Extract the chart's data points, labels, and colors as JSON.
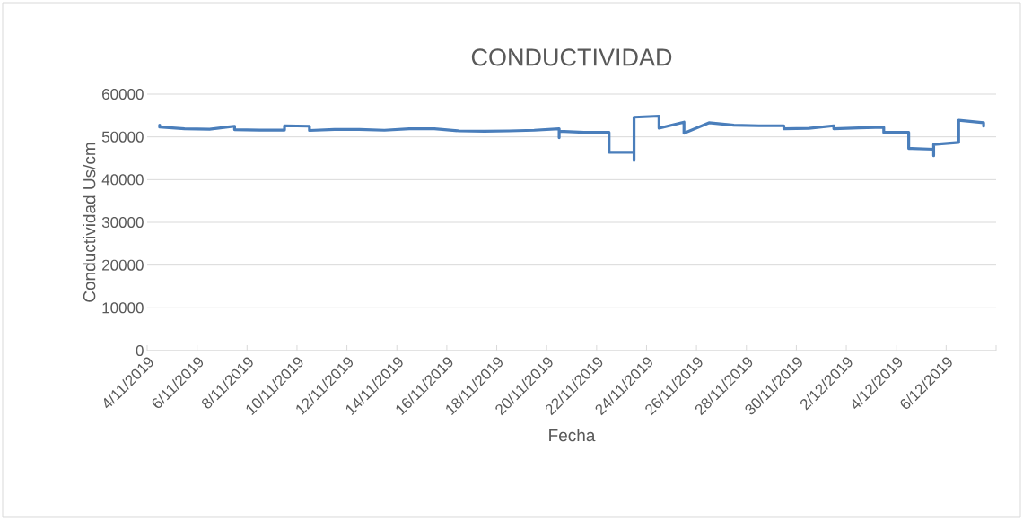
{
  "chart_data": {
    "type": "line",
    "title": "CONDUCTIVIDAD",
    "xlabel": "Fecha",
    "ylabel": "Conductividad Us/cm",
    "x": [
      "2019-11-04T12:00",
      "2019-11-04T12:00",
      "2019-11-05T12:00",
      "2019-11-06T12:00",
      "2019-11-07T12:00",
      "2019-11-07T12:00",
      "2019-11-08T12:00",
      "2019-11-09T12:00",
      "2019-11-09T12:00",
      "2019-11-10T12:00",
      "2019-11-10T12:00",
      "2019-11-11T12:00",
      "2019-11-12T12:00",
      "2019-11-13T12:00",
      "2019-11-14T12:00",
      "2019-11-15T12:00",
      "2019-11-16T12:00",
      "2019-11-17T12:00",
      "2019-11-18T12:00",
      "2019-11-19T12:00",
      "2019-11-20T12:00",
      "2019-11-20T12:00",
      "2019-11-20T12:00",
      "2019-11-21T12:00",
      "2019-11-22T12:00",
      "2019-11-22T12:00",
      "2019-11-23T12:00",
      "2019-11-23T12:00",
      "2019-11-23T12:00",
      "2019-11-24T12:00",
      "2019-11-24T12:00",
      "2019-11-25T12:00",
      "2019-11-25T12:00",
      "2019-11-26T12:00",
      "2019-11-27T12:00",
      "2019-11-28T12:00",
      "2019-11-29T12:00",
      "2019-11-29T12:00",
      "2019-11-30T12:00",
      "2019-12-01T12:00",
      "2019-12-01T12:00",
      "2019-12-02T12:00",
      "2019-12-03T12:00",
      "2019-12-03T12:00",
      "2019-12-04T12:00",
      "2019-12-04T12:00",
      "2019-12-05T12:00",
      "2019-12-05T12:00",
      "2019-12-05T12:00",
      "2019-12-06T12:00",
      "2019-12-06T12:00",
      "2019-12-07T12:00",
      "2019-12-07T12:00"
    ],
    "series": [
      {
        "color": "#4a7ebb",
        "values": [
          52750,
          52300,
          51900,
          51800,
          52500,
          51700,
          51600,
          51600,
          52600,
          52500,
          51500,
          51750,
          51750,
          51550,
          51900,
          51900,
          51400,
          51340,
          51400,
          51550,
          51900,
          49800,
          51300,
          51050,
          51050,
          46400,
          46400,
          44500,
          54600,
          54860,
          52040,
          53450,
          50850,
          53300,
          52750,
          52600,
          52600,
          51900,
          52000,
          52600,
          51900,
          52100,
          52250,
          51050,
          51050,
          47300,
          47100,
          45600,
          48240,
          48700,
          53900,
          53300,
          52500
        ]
      }
    ],
    "xlim": [
      "2019-11-04",
      "2019-12-08"
    ],
    "xticks": [
      {
        "value": "2019-11-04",
        "label": "4/11/2019"
      },
      {
        "value": "2019-11-06",
        "label": "6/11/2019"
      },
      {
        "value": "2019-11-08",
        "label": "8/11/2019"
      },
      {
        "value": "2019-11-10",
        "label": "10/11/2019"
      },
      {
        "value": "2019-11-12",
        "label": "12/11/2019"
      },
      {
        "value": "2019-11-14",
        "label": "14/11/2019"
      },
      {
        "value": "2019-11-16",
        "label": "16/11/2019"
      },
      {
        "value": "2019-11-18",
        "label": "18/11/2019"
      },
      {
        "value": "2019-11-20",
        "label": "20/11/2019"
      },
      {
        "value": "2019-11-22",
        "label": "22/11/2019"
      },
      {
        "value": "2019-11-24",
        "label": "24/11/2019"
      },
      {
        "value": "2019-11-26",
        "label": "26/11/2019"
      },
      {
        "value": "2019-11-28",
        "label": "28/11/2019"
      },
      {
        "value": "2019-11-30",
        "label": "30/11/2019"
      },
      {
        "value": "2019-12-02",
        "label": "2/12/2019"
      },
      {
        "value": "2019-12-04",
        "label": "4/12/2019"
      },
      {
        "value": "2019-12-06",
        "label": "6/12/2019"
      },
      {
        "value": "2019-12-08",
        "label": null
      }
    ],
    "ylim": [
      0,
      60000
    ],
    "yticks": [
      0,
      10000,
      20000,
      30000,
      40000,
      50000,
      60000
    ],
    "grid": "y",
    "legend": false,
    "marker": "none",
    "line_style": "solid"
  }
}
